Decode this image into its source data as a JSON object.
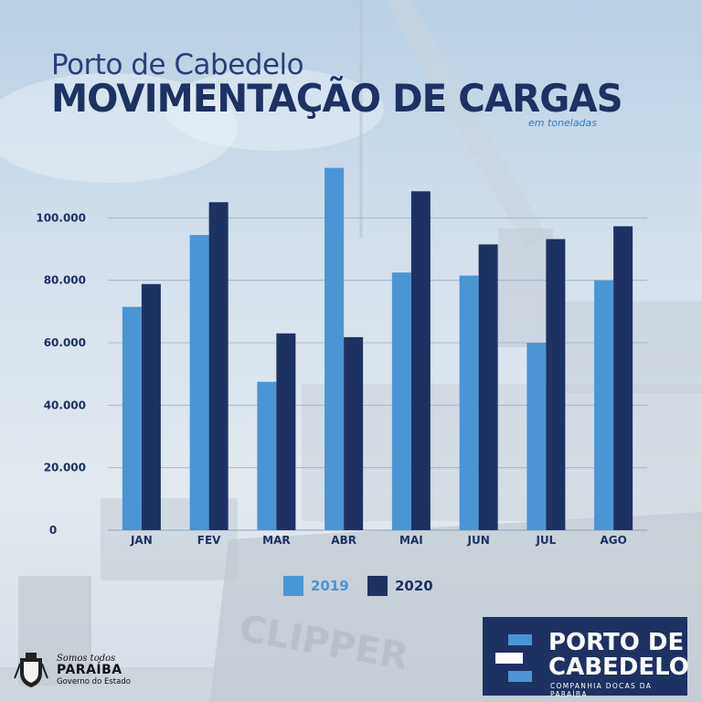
{
  "header": {
    "subtitle": "Porto de Cabedelo",
    "title": "MOVIMENTAÇÃO DE CARGAS",
    "unit_note": "em toneladas"
  },
  "colors": {
    "series_2019": "#4a95d4",
    "series_2020": "#1e3163",
    "axis_text": "#1e3163",
    "grid": "#8fa4bd"
  },
  "chart_data": {
    "type": "bar",
    "categories": [
      "JAN",
      "FEV",
      "MAR",
      "ABR",
      "MAI",
      "JUN",
      "JUL",
      "AGO"
    ],
    "series": [
      {
        "name": "2019",
        "values": [
          71500,
          94500,
          47500,
          116000,
          82500,
          81500,
          60000,
          80000
        ]
      },
      {
        "name": "2020",
        "values": [
          78800,
          105000,
          63000,
          61800,
          108500,
          91500,
          93200,
          97300
        ]
      }
    ],
    "yticks": [
      0,
      20000,
      40000,
      60000,
      80000,
      100000
    ],
    "ytick_labels": [
      "0",
      "20.000",
      "40.000",
      "60.000",
      "80.000",
      "100.000"
    ],
    "ylim": [
      0,
      120000
    ],
    "grid": true,
    "legend": "bottom-center",
    "title": "MOVIMENTAÇÃO DE CARGAS",
    "ylabel": "em toneladas",
    "xlabel": ""
  },
  "legend": {
    "items": [
      {
        "label": "2019"
      },
      {
        "label": "2020"
      }
    ]
  },
  "logo": {
    "line1": "PORTO DE",
    "line2": "CABEDELO",
    "tagline": "COMPANHIA DOCAS DA PARAÍBA"
  },
  "government": {
    "slogan": "Somos todos",
    "name": "PARAÍBA",
    "sub": "Governo do Estado"
  }
}
